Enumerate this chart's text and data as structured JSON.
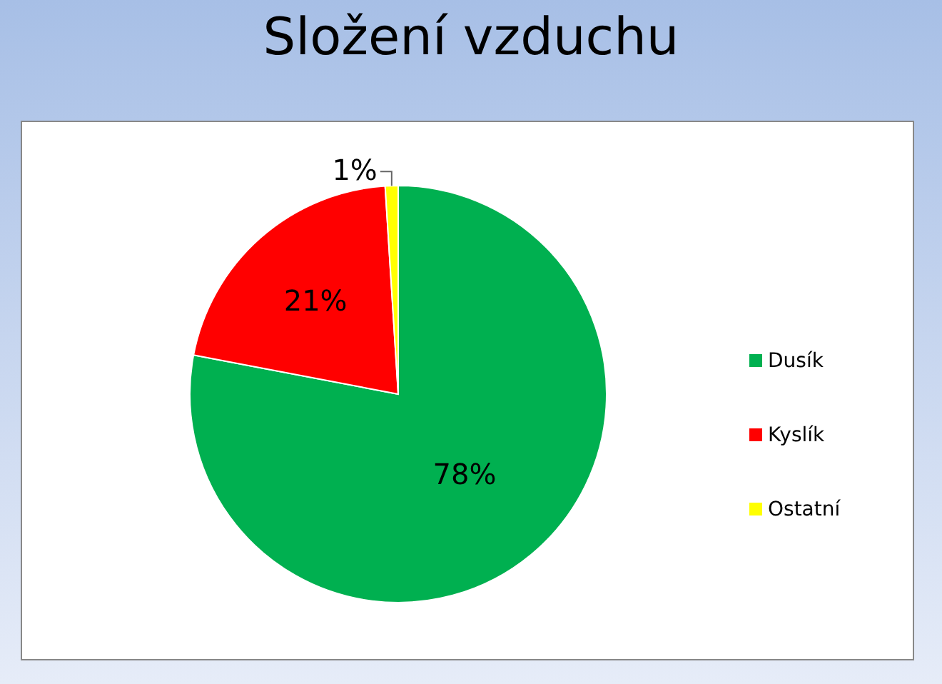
{
  "chart_data": {
    "type": "pie",
    "title": "Složení vzduchu",
    "categories": [
      "Dusík",
      "Kyslík",
      "Ostatní"
    ],
    "values": [
      78,
      21,
      1
    ],
    "colors": [
      "#00b050",
      "#ff0000",
      "#ffff00"
    ],
    "value_labels": [
      "78%",
      "21%",
      "1%"
    ],
    "legend": "right"
  }
}
